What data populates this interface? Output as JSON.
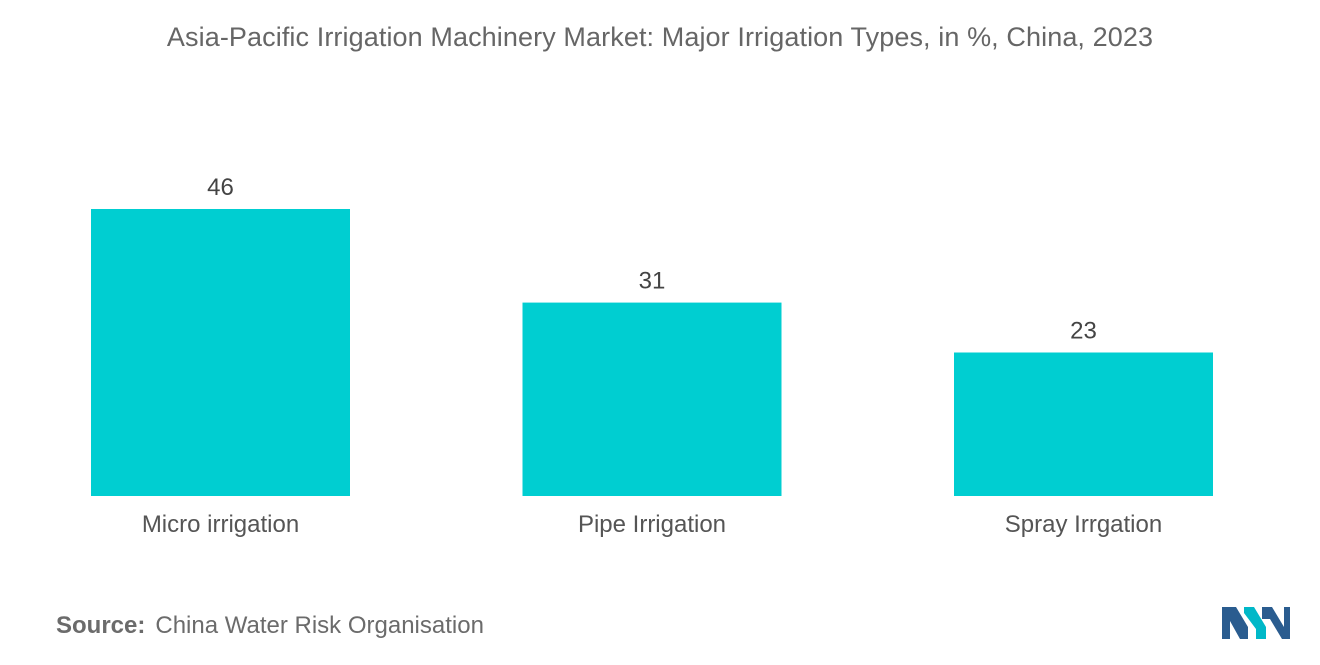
{
  "chart_data": {
    "type": "bar",
    "title": "Asia-Pacific Irrigation Machinery Market: Major Irrigation Types, in %, China, 2023",
    "categories": [
      "Micro irrigation",
      "Pipe Irrigation",
      "Spray Irrgation"
    ],
    "values": [
      46,
      31,
      23
    ],
    "data_labels": [
      "46",
      "31",
      "23"
    ],
    "xlabel": "",
    "ylabel": "",
    "ylim": [
      0,
      46
    ],
    "grid": false,
    "legend": "none",
    "bar_color": "#00CED1"
  },
  "source": {
    "label": "Source:",
    "text": "China Water Risk Organisation"
  },
  "logo": {
    "icon": "mordor-intelligence-logo-icon",
    "colors": [
      "#2a5c8f",
      "#00b8c8"
    ]
  }
}
